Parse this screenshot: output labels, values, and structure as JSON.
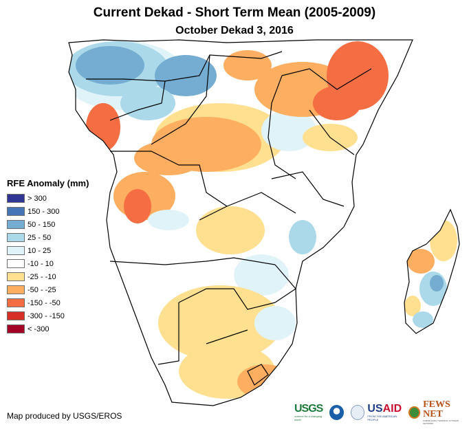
{
  "header": {
    "title": "Current Dekad - Short Term Mean (2005-2009)",
    "subtitle": "October Dekad 3, 2016"
  },
  "legend": {
    "title": "RFE Anomaly (mm)",
    "items": [
      {
        "label": "> 300",
        "color": "#313695"
      },
      {
        "label": "150 - 300",
        "color": "#4575b4"
      },
      {
        "label": "50 - 150",
        "color": "#74add1"
      },
      {
        "label": "25 - 50",
        "color": "#abd9e9"
      },
      {
        "label": "10 - 25",
        "color": "#e0f3f8"
      },
      {
        "label": "-10 - 10",
        "color": "#ffffff"
      },
      {
        "label": "-25 - -10",
        "color": "#fee090"
      },
      {
        "label": "-50 - -25",
        "color": "#fdae61"
      },
      {
        "label": "-150 - -50",
        "color": "#f46d43"
      },
      {
        "label": "-300 - -150",
        "color": "#d73027"
      },
      {
        "label": "< -300",
        "color": "#a50026"
      }
    ]
  },
  "footer": {
    "credit": "Map produced by USGS/EROS",
    "logos": {
      "usgs": "USGS",
      "usgs_tagline": "science for a changing world",
      "usaid_us": "US",
      "usaid_aid": "AID",
      "usaid_tagline": "FROM THE AMERICAN PEOPLE",
      "fews": "FEWS NET",
      "fews_tagline": "FAMINE EARLY WARNING SYSTEMS NETWORK"
    }
  },
  "map": {
    "region": "Central, Eastern and Southern Africa",
    "anomaly_regions": [
      {
        "area": "Cameroon / Central African Republic / northern Congo",
        "class": "50 - 150"
      },
      {
        "area": "Gabon / coastal Congo / western DRC coast",
        "class": "-150 - -50"
      },
      {
        "area": "Central DRC",
        "class": "-50 - -25"
      },
      {
        "area": "Northern Angola",
        "class": "-50 - -25"
      },
      {
        "area": "Somalia / eastern Ethiopia",
        "class": "-150 - -50"
      },
      {
        "area": "Kenya",
        "class": "-50 - -25"
      },
      {
        "area": "Uganda / South Sudan",
        "class": "-50 - -25"
      },
      {
        "area": "Zambia (west) / Botswana / South Africa interior",
        "class": "-25 - -10"
      },
      {
        "area": "Eastern South Africa coast",
        "class": "-50 - -25"
      },
      {
        "area": "Zimbabwe / Mozambique (scattered)",
        "class": "10 - 25"
      },
      {
        "area": "Eastern Madagascar",
        "class": "50 - 150"
      },
      {
        "area": "Western Madagascar",
        "class": "-50 - -25"
      }
    ]
  }
}
